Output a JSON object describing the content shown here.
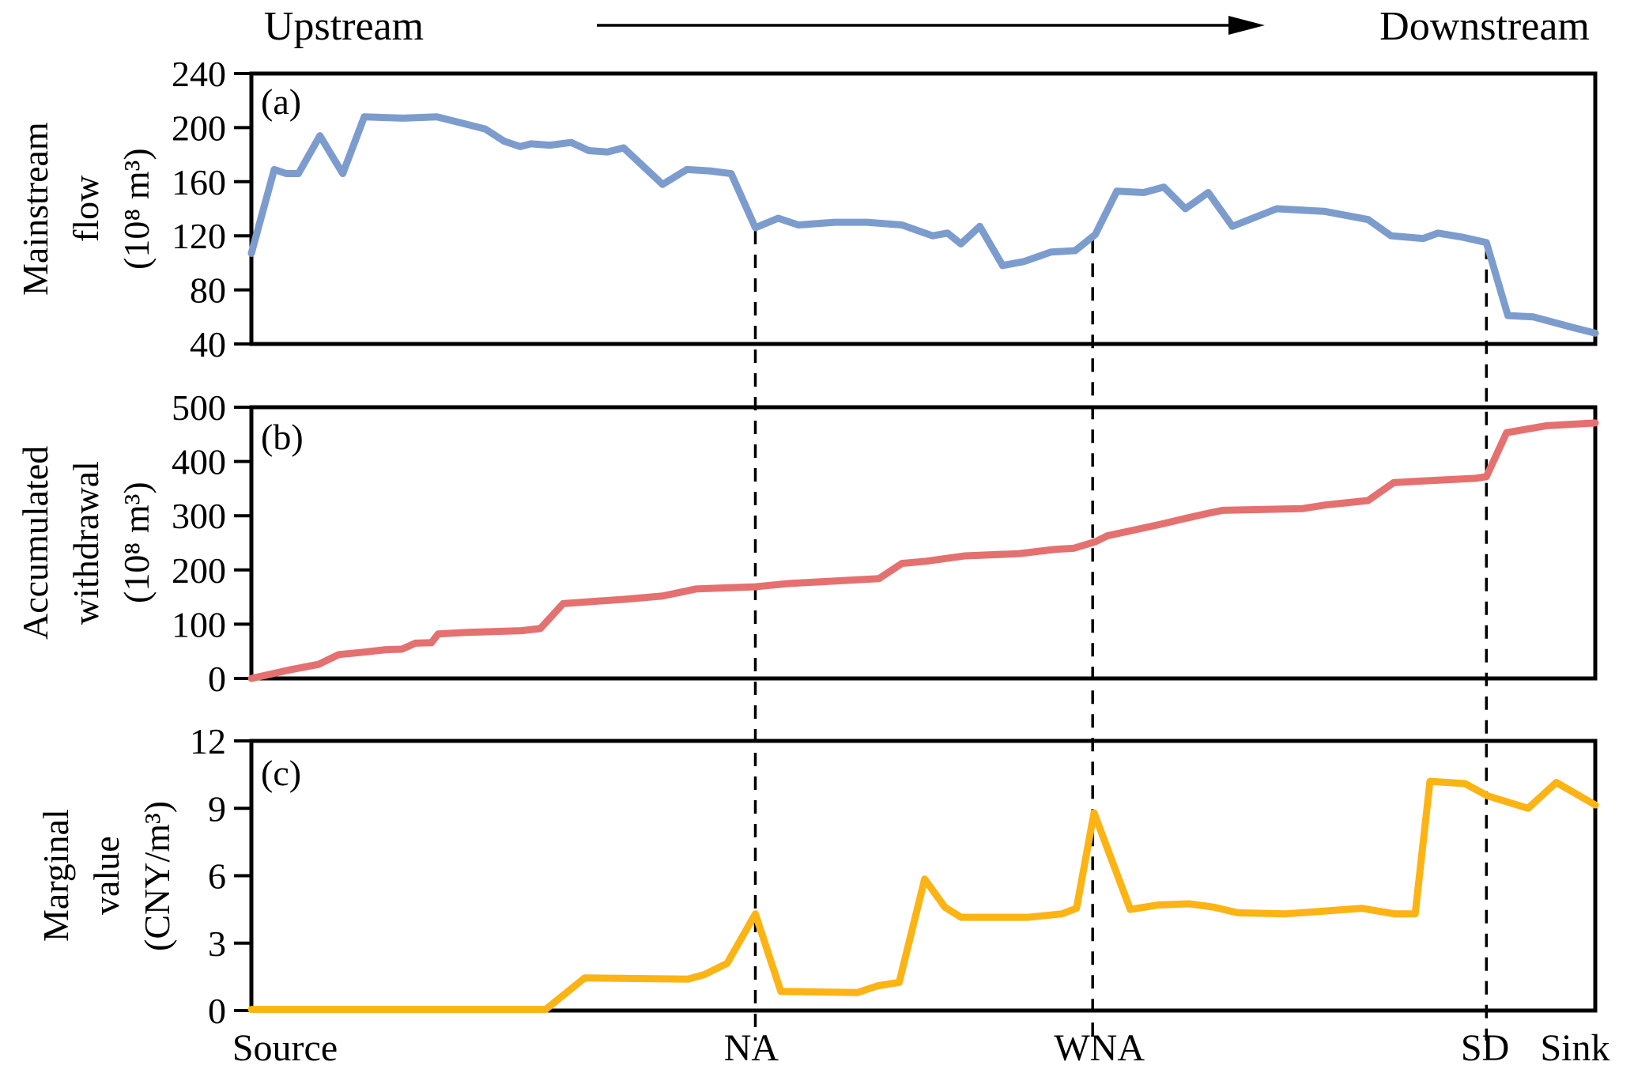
{
  "header": {
    "left_label": "Upstream",
    "right_label": "Downstream",
    "arrow_icon": "right-arrow"
  },
  "chart_data": {
    "type": "line",
    "title": "",
    "x_axis": {
      "stations": [
        {
          "label": "Source",
          "pos": 0.025
        },
        {
          "label": "NA",
          "pos": 0.372
        },
        {
          "label": "WNA",
          "pos": 0.631
        },
        {
          "label": "SD",
          "pos": 0.918
        },
        {
          "label": "Sink",
          "pos": 0.985
        }
      ],
      "dividers": [
        {
          "label": "NA",
          "pos": 0.375
        },
        {
          "label": "WNA",
          "pos": 0.626
        },
        {
          "label": "SD",
          "pos": 0.919
        }
      ]
    },
    "panels": [
      {
        "id": "a",
        "letter": "(a)",
        "slug": "mainstream-flow",
        "ylabel_lines": [
          "Mainstream",
          "flow",
          "(10⁸ m³)"
        ],
        "ylim": [
          40,
          240
        ],
        "yticks": [
          40,
          80,
          120,
          160,
          200,
          240
        ],
        "color": "#7D9CCE",
        "x": [
          0.0,
          0.017,
          0.026,
          0.035,
          0.051,
          0.068,
          0.084,
          0.113,
          0.138,
          0.166,
          0.174,
          0.188,
          0.2,
          0.208,
          0.222,
          0.238,
          0.251,
          0.265,
          0.277,
          0.306,
          0.324,
          0.341,
          0.357,
          0.375,
          0.392,
          0.407,
          0.434,
          0.458,
          0.484,
          0.507,
          0.518,
          0.528,
          0.542,
          0.559,
          0.575,
          0.595,
          0.613,
          0.628,
          0.644,
          0.664,
          0.679,
          0.695,
          0.712,
          0.73,
          0.763,
          0.799,
          0.831,
          0.848,
          0.872,
          0.883,
          0.901,
          0.919,
          0.935,
          0.954,
          0.984,
          1.0
        ],
        "y": [
          107,
          169,
          166,
          166,
          194,
          166,
          208,
          207,
          208,
          201,
          199,
          190,
          186,
          188,
          187,
          189,
          183,
          182,
          185,
          158,
          169,
          168,
          166,
          126,
          133,
          128,
          130,
          130,
          128,
          120,
          122,
          114,
          127,
          98,
          101,
          108,
          109,
          121,
          153,
          152,
          156,
          140,
          152,
          127,
          140,
          138,
          132,
          120,
          118,
          122,
          119,
          115,
          61,
          60,
          52,
          48
        ]
      },
      {
        "id": "b",
        "letter": "(b)",
        "slug": "accumulated-withdrawal",
        "ylabel_lines": [
          "Accumulated",
          "withdrawal",
          "(10⁸ m³)"
        ],
        "ylim": [
          0,
          500
        ],
        "yticks": [
          0,
          100,
          200,
          300,
          400,
          500
        ],
        "color": "#E57070",
        "x": [
          0.0,
          0.029,
          0.05,
          0.065,
          0.082,
          0.1,
          0.112,
          0.122,
          0.134,
          0.139,
          0.161,
          0.201,
          0.215,
          0.232,
          0.278,
          0.306,
          0.331,
          0.375,
          0.4,
          0.467,
          0.484,
          0.502,
          0.531,
          0.571,
          0.598,
          0.612,
          0.628,
          0.637,
          0.654,
          0.678,
          0.695,
          0.713,
          0.723,
          0.782,
          0.8,
          0.831,
          0.85,
          0.872,
          0.911,
          0.919,
          0.934,
          0.964,
          1.0
        ],
        "y": [
          0,
          16,
          26,
          44,
          48,
          53,
          54,
          65,
          66,
          82,
          85,
          88,
          92,
          138,
          146,
          152,
          165,
          169,
          175,
          184,
          212,
          216,
          226,
          230,
          238,
          240,
          252,
          263,
          272,
          285,
          295,
          305,
          310,
          313,
          320,
          328,
          361,
          364,
          369,
          372,
          453,
          466,
          471
        ]
      },
      {
        "id": "c",
        "letter": "(c)",
        "slug": "marginal-value",
        "ylabel_lines": [
          "Marginal",
          "value",
          "(CNY/m³)"
        ],
        "ylim": [
          0,
          12
        ],
        "yticks": [
          0,
          3,
          6,
          9,
          12
        ],
        "color": "#FCB415",
        "x": [
          0.0,
          0.219,
          0.248,
          0.325,
          0.337,
          0.354,
          0.375,
          0.394,
          0.451,
          0.466,
          0.482,
          0.501,
          0.516,
          0.528,
          0.578,
          0.603,
          0.614,
          0.627,
          0.654,
          0.675,
          0.698,
          0.716,
          0.734,
          0.769,
          0.804,
          0.826,
          0.851,
          0.866,
          0.877,
          0.903,
          0.92,
          0.95,
          0.971,
          1.0
        ],
        "y": [
          0.05,
          0.05,
          1.45,
          1.4,
          1.6,
          2.1,
          4.3,
          0.85,
          0.8,
          1.1,
          1.25,
          5.85,
          4.6,
          4.15,
          4.15,
          4.3,
          4.55,
          8.8,
          4.5,
          4.7,
          4.75,
          4.6,
          4.35,
          4.3,
          4.45,
          4.55,
          4.3,
          4.3,
          10.2,
          10.1,
          9.55,
          9.0,
          10.15,
          9.15
        ]
      }
    ]
  }
}
